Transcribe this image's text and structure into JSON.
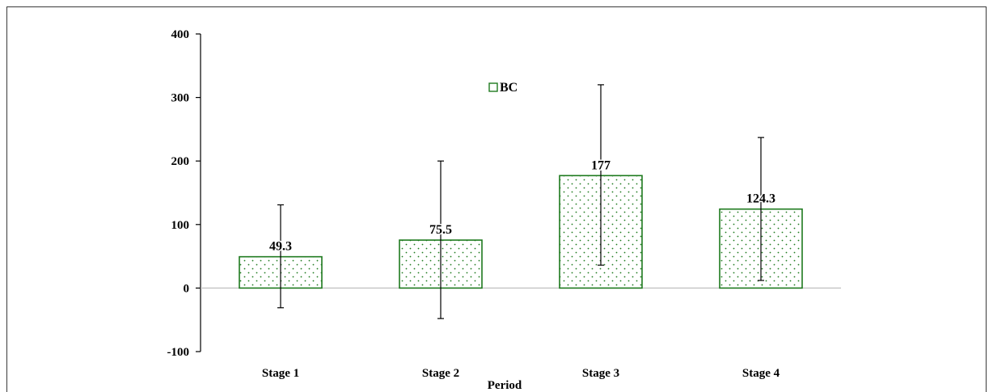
{
  "chart_data": {
    "type": "bar",
    "categories": [
      "Stage 1",
      "Stage 2",
      "Stage 3",
      "Stage 4"
    ],
    "series": [
      {
        "name": "BC",
        "values": [
          49.3,
          75.5,
          177,
          124.3
        ],
        "error_upper": [
          131,
          200,
          320,
          237
        ],
        "error_lower": [
          -31,
          -48,
          36,
          12
        ],
        "data_labels": [
          "49.3",
          "75.5",
          "177",
          "124.3"
        ]
      }
    ],
    "ylim": [
      -100,
      400
    ],
    "yticks": [
      400,
      300,
      200,
      100,
      0,
      -100
    ],
    "ytick_labels": [
      "400",
      "300",
      "200",
      "100",
      "0",
      "-100"
    ],
    "xlabel": "Period",
    "ylabel": "",
    "title": "",
    "legend": {
      "placement": "top-center",
      "label": "BC"
    },
    "grid": false,
    "colors": {
      "bar_border": "#1e7a1e",
      "bar_dots": "#1e7a1e",
      "axis": "#000000",
      "zero_line": "#bfbfbf",
      "error_bar": "#000000"
    }
  }
}
